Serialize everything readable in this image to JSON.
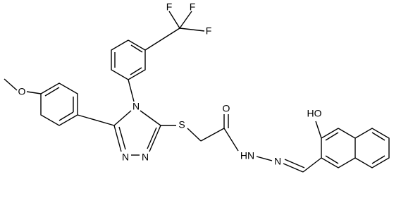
{
  "atoms": {
    "f1": "F",
    "f2": "F",
    "f3": "F",
    "n4": "N",
    "n1": "N",
    "n2": "N",
    "o_methoxy": "O",
    "s": "S",
    "o_carbonyl": "O",
    "nh": "HN",
    "n_imine": "N",
    "oh": "HO"
  }
}
